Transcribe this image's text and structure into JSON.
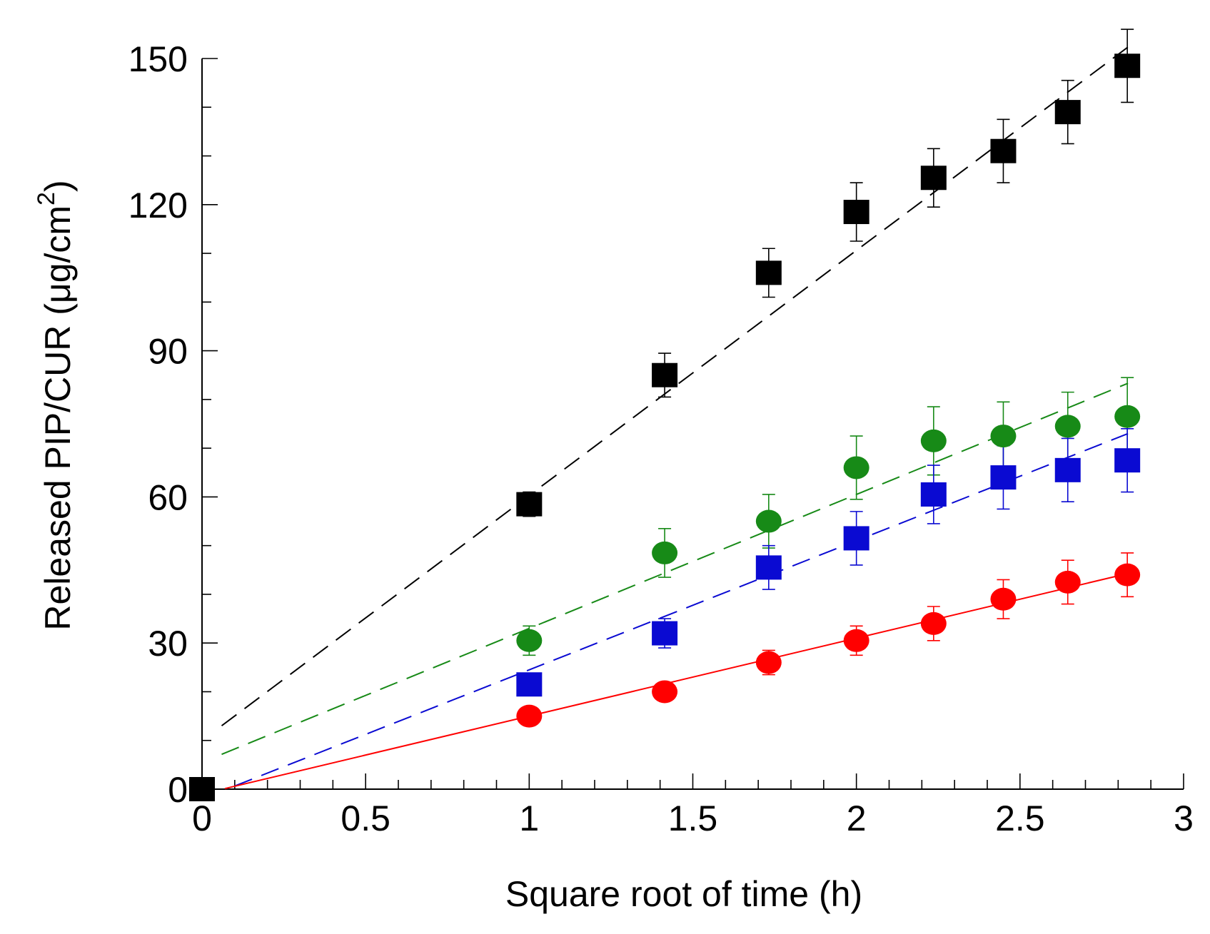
{
  "chart_data": {
    "type": "scatter",
    "title": "",
    "xlabel": "Square root of time (h)",
    "ylabel": {
      "main": "Released PIP/CUR (μg/cm",
      "sup": "2",
      "close": ")"
    },
    "xlim": [
      0,
      3
    ],
    "ylim": [
      0,
      150
    ],
    "xticks": [
      0,
      0.5,
      1,
      1.5,
      2,
      2.5,
      3
    ],
    "xtick_labels": [
      "0",
      "0.5",
      "1",
      "1.5",
      "2",
      "2.5",
      "3"
    ],
    "yticks": [
      0,
      30,
      60,
      90,
      120,
      150
    ],
    "ytick_labels": [
      "0",
      "30",
      "60",
      "90",
      "120",
      "150"
    ],
    "x": [
      0,
      1,
      1.414,
      1.732,
      2,
      2.236,
      2.449,
      2.646,
      2.828
    ],
    "series": [
      {
        "name": "black",
        "marker": "square",
        "color": "#000000",
        "values": [
          0,
          58.5,
          85,
          106,
          118.5,
          125.5,
          131,
          139,
          148.5
        ],
        "errors": [
          0,
          2.5,
          4.5,
          5,
          6,
          6,
          6.5,
          6.5,
          7.5
        ],
        "fit": {
          "slope": 50.3,
          "intercept": 10,
          "x_start": 0.06,
          "x_end": 2.83,
          "dash": "26 14"
        }
      },
      {
        "name": "green",
        "marker": "circle",
        "color": "#178a17",
        "values": [
          0,
          30.5,
          48.5,
          55,
          66,
          71.5,
          72.5,
          74.5,
          76.5
        ],
        "errors": [
          0,
          3,
          5,
          5.5,
          6.5,
          7,
          7,
          7,
          8
        ],
        "fit": {
          "slope": 27.5,
          "intercept": 5.5,
          "x_start": 0.06,
          "x_end": 2.83,
          "dash": "26 14"
        }
      },
      {
        "name": "blue",
        "marker": "square",
        "color": "#0a0ad2",
        "values": [
          0,
          21.5,
          32,
          45.5,
          51.5,
          60.5,
          64,
          65.5,
          67.5
        ],
        "errors": [
          0,
          0,
          3,
          4.5,
          5.5,
          6,
          6.5,
          6.5,
          6.5
        ],
        "fit": {
          "slope": 26.5,
          "intercept": -2,
          "x_start": 0.1,
          "x_end": 2.83,
          "dash": "26 14"
        }
      },
      {
        "name": "red",
        "marker": "circle",
        "color": "#ff0000",
        "values": [
          0,
          15,
          20,
          26,
          30.5,
          34,
          39,
          42.5,
          44
        ],
        "errors": [
          0,
          0,
          0,
          2.5,
          3,
          3.5,
          4,
          4.5,
          4.5
        ],
        "fit": {
          "slope": 16.0,
          "intercept": -1,
          "x_start": 0.07,
          "x_end": 2.83,
          "dash": "none"
        }
      }
    ]
  }
}
